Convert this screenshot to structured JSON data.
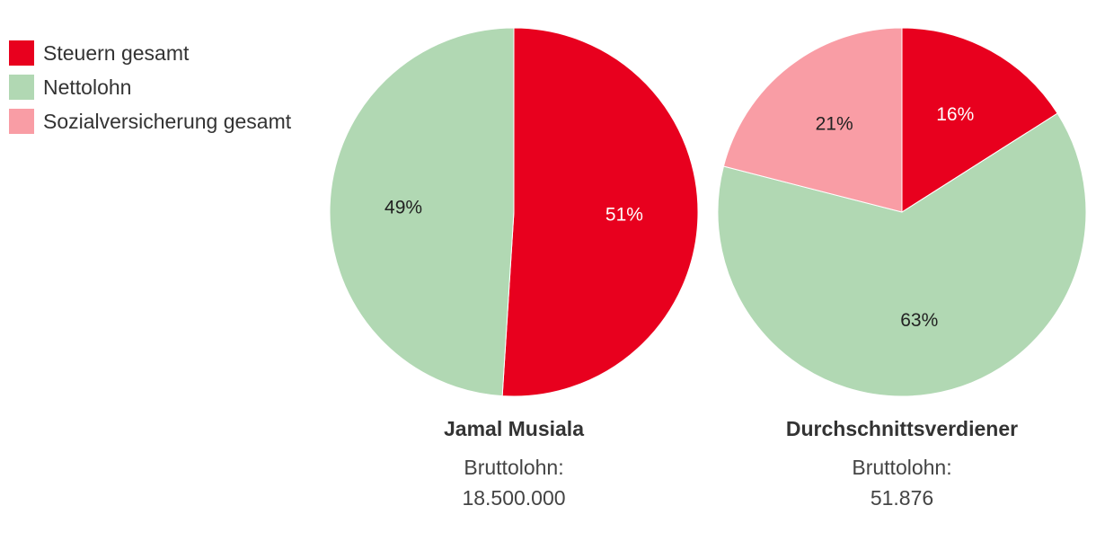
{
  "legend": [
    {
      "label": "Steuern gesamt",
      "color": "#E8001E"
    },
    {
      "label": "Nettolohn",
      "color": "#B1D8B3"
    },
    {
      "label": "Sozialversicherung gesamt",
      "color": "#F99DA5"
    }
  ],
  "chart_data": [
    {
      "type": "pie",
      "title": "Jamal Musiala",
      "subtitle_label": "Bruttolohn:",
      "subtitle_value": "18.500.000",
      "slices": [
        {
          "name": "Steuern gesamt",
          "value": 51,
          "label": "51%",
          "color": "#E8001E",
          "label_color": "#ffffff"
        },
        {
          "name": "Nettolohn",
          "value": 49,
          "label": "49%",
          "color": "#B1D8B3",
          "label_color": "#222222"
        }
      ]
    },
    {
      "type": "pie",
      "title": "Durchschnittsverdiener",
      "subtitle_label": "Bruttolohn:",
      "subtitle_value": "51.876",
      "slices": [
        {
          "name": "Steuern gesamt",
          "value": 16,
          "label": "16%",
          "color": "#E8001E",
          "label_color": "#ffffff"
        },
        {
          "name": "Nettolohn",
          "value": 63,
          "label": "63%",
          "color": "#B1D8B3",
          "label_color": "#222222"
        },
        {
          "name": "Sozialversicherung gesamt",
          "value": 21,
          "label": "21%",
          "color": "#F99DA5",
          "label_color": "#222222"
        }
      ]
    }
  ]
}
